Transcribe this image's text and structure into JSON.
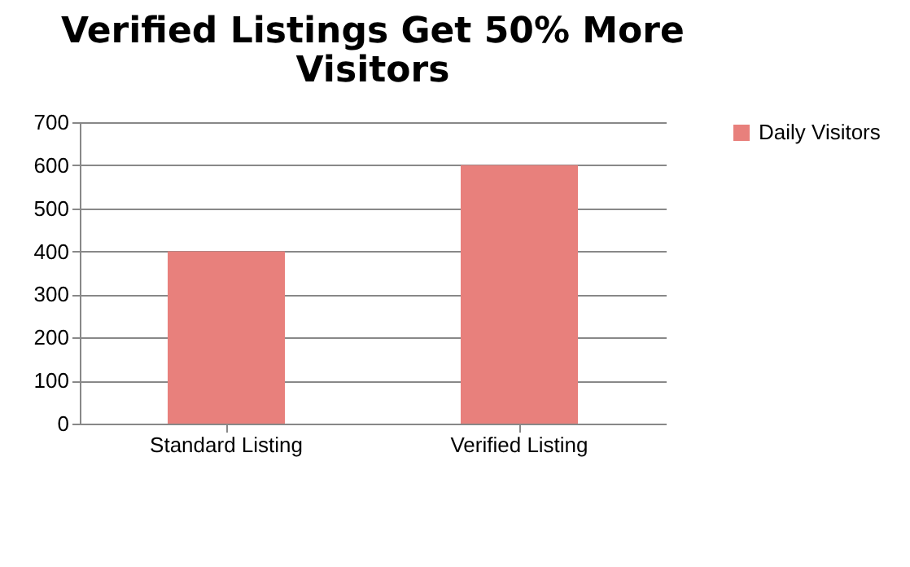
{
  "chart_data": {
    "type": "bar",
    "title": "Verified Listings Get 50% More Visitors",
    "categories": [
      "Standard Listing",
      "Verified Listing"
    ],
    "series": [
      {
        "name": "Daily Visitors",
        "color": "#e8807c",
        "values": [
          400,
          600
        ]
      }
    ],
    "ylim": [
      0,
      700
    ],
    "yticks": [
      0,
      100,
      200,
      300,
      400,
      500,
      600,
      700
    ],
    "grid": "y",
    "legend": "right"
  }
}
